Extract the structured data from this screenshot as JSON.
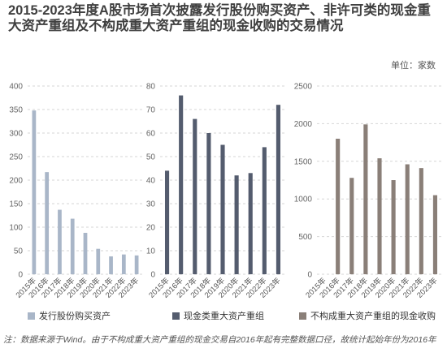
{
  "title": "2015-2023年度A股市场首次披露发行股份购买资产、非许可类的现金重大资产重组及不构成重大资产重组的现金收购的交易情况",
  "unit_label": "单位：家数",
  "note": "注：数据来源于Wind。由于不构成重大资产重组的现金交易自2016年起有完整数据口径，故统计起始年份为2016年",
  "chart_data": [
    {
      "type": "bar",
      "categories": [
        "2015年",
        "2016年",
        "2017年",
        "2018年",
        "2019年",
        "2020年",
        "2021年",
        "2022年",
        "2023年"
      ],
      "series": [
        {
          "name": "发行股份购买资产",
          "values": [
            348,
            217,
            137,
            118,
            88,
            54,
            38,
            42,
            40
          ]
        }
      ],
      "ylim": [
        0,
        400
      ],
      "yticks": [
        "0",
        "50",
        "100",
        "150",
        "200",
        "250",
        "300",
        "350",
        "400"
      ],
      "color": "#a9b6c8",
      "grid": "horizontal dashed",
      "legend_position": "bottom"
    },
    {
      "type": "bar",
      "categories": [
        "2015年",
        "2016年",
        "2017年",
        "2018年",
        "2019年",
        "2020年",
        "2021年",
        "2022年",
        "2023年"
      ],
      "series": [
        {
          "name": "现金类重大资产重组",
          "values": [
            44,
            76,
            66,
            60,
            55,
            42,
            43,
            54,
            72
          ]
        }
      ],
      "ylim": [
        0,
        80
      ],
      "yticks": [
        "0",
        "10",
        "20",
        "30",
        "40",
        "50",
        "60",
        "70",
        "80"
      ],
      "color": "#545c6e",
      "grid": "horizontal dashed",
      "legend_position": "bottom"
    },
    {
      "type": "bar",
      "categories": [
        "2015年",
        "2016年",
        "2017年",
        "2018年",
        "2019年",
        "2020年",
        "2021年",
        "2022年",
        "2023年"
      ],
      "series": [
        {
          "name": "不构成重大资产重组的现金收购",
          "values": [
            null,
            1800,
            1280,
            1990,
            1540,
            1250,
            1460,
            1410,
            1050
          ]
        }
      ],
      "ylim": [
        0,
        2500
      ],
      "yticks": [
        "0",
        "500",
        "1000",
        "1500",
        "2000",
        "2500"
      ],
      "color": "#8a7f78",
      "grid": "horizontal dashed",
      "legend_position": "bottom"
    }
  ]
}
